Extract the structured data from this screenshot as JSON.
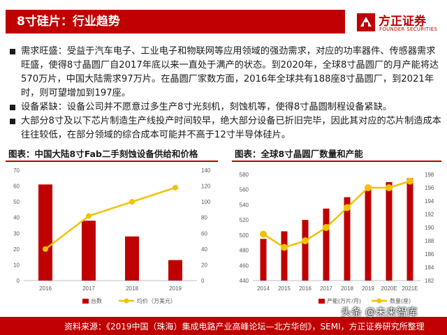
{
  "header": {
    "title": "8寸硅片：行业趋势",
    "logo_cn": "方正证券",
    "logo_en": "FOUNDER SECURITIES"
  },
  "bullets": [
    "需求旺盛：受益于汽车电子、工业电子和物联网等应用领域的强劲需求，对应的功率器件、传感器需求旺盛，使得8寸晶圆厂自2017年底以来一直处于满产的状态。到2020年，全球8寸晶圆厂的月产能将达570万片，中国大陆需求97万片。在晶圆厂家数方面，2016年全球共有188座8寸晶圆厂，到2021年时，则可望增加到197座。",
    "设备紧缺：设备公司并不愿意过多生产8寸光刻机，刻蚀机等，使得8寸晶圆制程设备紧缺。",
    "大部分8寸及以下芯片制造生产线投产时间较早，绝大部分设备已折旧完毕，因此其对应的芯片制造成本往往较低，在部分领域的综合成本可能并不高于12寸半导体硅片。"
  ],
  "footer": {
    "source": "资料来源：《2019中国（珠海）集成电路产业高峰论坛—北方华创》，SEMI，方正证券研究所整理"
  },
  "watermark": "头条 @未来智库",
  "colors": {
    "bar": "#c00000",
    "line": "#f2c100",
    "accent": "#c00000"
  },
  "chart_data": [
    {
      "type": "bar+line",
      "title": "图表：中国大陆8寸Fab二手刻蚀设备供给和价格",
      "categories": [
        "2016",
        "2017",
        "2018",
        "2019"
      ],
      "series": [
        {
          "name": "台数",
          "kind": "bar",
          "axis": "left",
          "values": [
            61,
            38,
            28,
            13
          ]
        },
        {
          "name": "均价（万美元）",
          "kind": "line",
          "axis": "right",
          "values": [
            40,
            82,
            100,
            118
          ]
        }
      ],
      "y_left": {
        "min": 0,
        "max": 70,
        "ticks": [
          0,
          10,
          20,
          30,
          40,
          50,
          60,
          70
        ]
      },
      "y_right": {
        "min": 0,
        "max": 140,
        "ticks": [
          0,
          20,
          40,
          60,
          80,
          100,
          120,
          140
        ]
      },
      "legend": "bottom",
      "grid": false
    },
    {
      "type": "bar+line",
      "title": "图表：全球8寸晶圆厂数量和产能",
      "categories": [
        "2014",
        "2015",
        "2016",
        "2017",
        "2018",
        "2019",
        "2020E",
        "2021E"
      ],
      "series": [
        {
          "name": "产能(万片/月)",
          "kind": "bar",
          "axis": "left",
          "values": [
            495,
            505,
            520,
            535,
            550,
            565,
            570,
            575
          ]
        },
        {
          "name": "数量(座)",
          "kind": "line",
          "axis": "right",
          "values": [
            189,
            187,
            188,
            190,
            193,
            196,
            196,
            197
          ]
        }
      ],
      "y_left": {
        "min": 440,
        "max": 580,
        "ticks": [
          440,
          460,
          480,
          500,
          520,
          540,
          560,
          580
        ]
      },
      "y_right": {
        "min": 182,
        "max": 198,
        "ticks": [
          182,
          184,
          186,
          188,
          190,
          192,
          194,
          196,
          198
        ]
      },
      "legend": "bottom",
      "grid": false
    }
  ]
}
